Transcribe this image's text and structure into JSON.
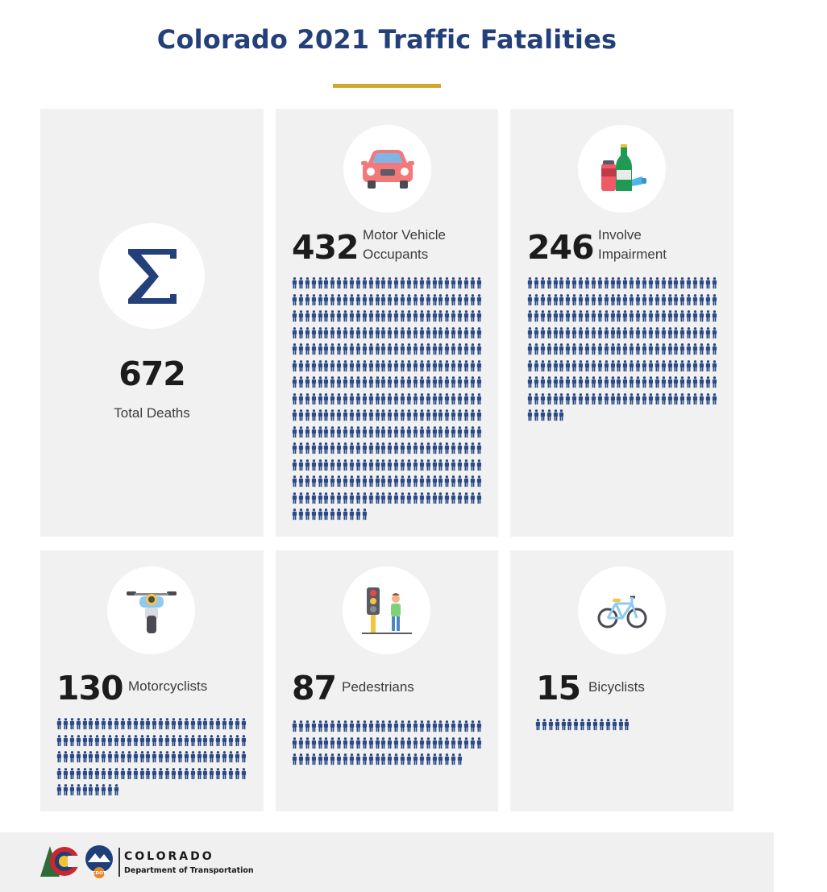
{
  "header": {
    "title": "Colorado 2021 Traffic Fatalities"
  },
  "total": {
    "number": "672",
    "label": "Total Deaths",
    "icon": "sigma-icon"
  },
  "categories": [
    {
      "key": "motor_vehicle",
      "number": "432",
      "label_lines": [
        "Motor Vehicle",
        "Occupants"
      ],
      "count": 432,
      "icon": "car-icon"
    },
    {
      "key": "impairment",
      "number": "246",
      "label_lines": [
        "Involve",
        "Impairment"
      ],
      "count": 246,
      "icon": "bottles-icon"
    },
    {
      "key": "motorcyclists",
      "number": "130",
      "label_lines": [
        "Motorcyclists"
      ],
      "count": 130,
      "icon": "motorcycle-icon"
    },
    {
      "key": "pedestrians",
      "number": "87",
      "label_lines": [
        "Pedestrians"
      ],
      "count": 87,
      "icon": "pedestrian-traffic-light-icon"
    },
    {
      "key": "bicyclists",
      "number": "15",
      "label_lines": [
        "Bicyclists"
      ],
      "count": 15,
      "icon": "bicycle-icon"
    }
  ],
  "footer": {
    "org_name": "COLORADO",
    "org_sub": "Department of Transportation",
    "badge_text": "CDOT"
  },
  "colors": {
    "title": "#23407a",
    "accent_rule": "#cfa72a",
    "person": "#2b4a86",
    "card_bg": "#f1f1f1"
  }
}
